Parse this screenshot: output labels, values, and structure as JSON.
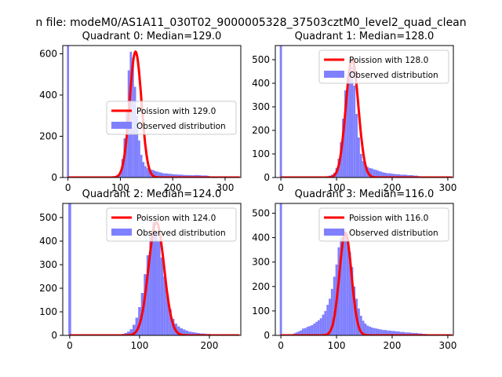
{
  "figure_title": "n file: modeM0/AS1A11_030T02_9000005328_37503cztM0_level2_quad_clean",
  "colors": {
    "poisson": "#ff0000",
    "observed": "#8080ff",
    "axis": "#000000"
  },
  "chart_data": [
    {
      "type": "bar",
      "title": "Quadrant 0: Median=129.0",
      "xlim": [
        -10,
        330
      ],
      "ylim": [
        0,
        640
      ],
      "xticks": [
        0,
        100,
        200,
        300
      ],
      "yticks": [
        0,
        200,
        400,
        600
      ],
      "legend": "center-right",
      "series": [
        {
          "name": "Poission with 129.0",
          "kind": "line",
          "median": 129.0
        },
        {
          "name": "Observed distribution",
          "kind": "hist"
        }
      ],
      "hist": {
        "x": [
          0,
          96,
          100,
          104,
          108,
          112,
          116,
          120,
          124,
          128,
          132,
          136,
          140,
          144,
          148,
          152,
          156,
          160,
          164,
          168,
          172,
          176,
          180,
          184,
          188,
          192,
          196,
          200,
          204,
          208,
          212,
          216,
          220,
          224,
          228,
          232,
          236,
          240,
          244,
          248,
          252,
          256,
          260,
          264,
          268,
          272,
          276,
          280
        ],
        "values": [
          640,
          5,
          30,
          90,
          190,
          330,
          520,
          610,
          580,
          440,
          300,
          180,
          110,
          75,
          55,
          45,
          40,
          38,
          35,
          30,
          28,
          25,
          22,
          20,
          20,
          18,
          18,
          16,
          15,
          15,
          14,
          14,
          13,
          12,
          12,
          12,
          11,
          11,
          12,
          12,
          11,
          10,
          10,
          10,
          8,
          6,
          4,
          3
        ]
      }
    },
    {
      "type": "bar",
      "title": "Quadrant 1: Median=128.0",
      "xlim": [
        -10,
        310
      ],
      "ylim": [
        0,
        560
      ],
      "xticks": [
        0,
        100,
        200,
        300
      ],
      "yticks": [
        0,
        100,
        200,
        300,
        400,
        500
      ],
      "legend": "top-right",
      "series": [
        {
          "name": "Poission with 128.0",
          "kind": "line",
          "median": 128.0
        },
        {
          "name": "Observed distribution",
          "kind": "hist"
        }
      ],
      "hist": {
        "x": [
          0,
          84,
          88,
          92,
          96,
          100,
          104,
          108,
          112,
          116,
          120,
          124,
          128,
          132,
          136,
          140,
          144,
          148,
          152,
          156,
          160,
          164,
          168,
          172,
          176,
          180,
          184,
          188,
          192,
          196,
          200,
          204,
          208,
          212,
          216,
          220,
          224,
          228,
          232,
          236,
          240,
          244,
          248,
          252,
          256,
          260
        ],
        "values": [
          560,
          4,
          8,
          12,
          20,
          40,
          80,
          150,
          250,
          370,
          430,
          500,
          470,
          390,
          270,
          170,
          100,
          70,
          55,
          45,
          40,
          38,
          34,
          32,
          28,
          25,
          22,
          20,
          18,
          18,
          16,
          15,
          14,
          14,
          12,
          12,
          12,
          10,
          10,
          10,
          8,
          8,
          6,
          4,
          4,
          2
        ]
      }
    },
    {
      "type": "bar",
      "title": "Quadrant 2: Median=124.0",
      "xlim": [
        -10,
        245
      ],
      "ylim": [
        0,
        560
      ],
      "xticks": [
        0,
        100,
        200
      ],
      "yticks": [
        0,
        100,
        200,
        300,
        400,
        500
      ],
      "legend": "top-right",
      "series": [
        {
          "name": "Poission with 124.0",
          "kind": "line",
          "median": 124.0
        },
        {
          "name": "Observed distribution",
          "kind": "hist"
        }
      ],
      "hist": {
        "x": [
          0,
          72,
          76,
          80,
          84,
          88,
          92,
          96,
          100,
          104,
          108,
          112,
          116,
          120,
          124,
          128,
          132,
          136,
          140,
          144,
          148,
          152,
          156,
          160,
          164,
          168,
          172,
          176,
          180,
          184,
          188,
          192,
          196,
          200,
          204,
          208,
          212,
          216,
          220
        ],
        "values": [
          560,
          4,
          6,
          10,
          16,
          26,
          45,
          75,
          120,
          180,
          260,
          340,
          420,
          480,
          440,
          400,
          330,
          250,
          170,
          110,
          70,
          50,
          38,
          30,
          25,
          20,
          16,
          14,
          12,
          10,
          8,
          8,
          6,
          6,
          4,
          4,
          3,
          2,
          2
        ]
      }
    },
    {
      "type": "bar",
      "title": "Quadrant 3: Median=116.0",
      "xlim": [
        -10,
        310
      ],
      "ylim": [
        0,
        540
      ],
      "xticks": [
        0,
        100,
        200,
        300
      ],
      "yticks": [
        0,
        100,
        200,
        300,
        400,
        500
      ],
      "legend": "top-right",
      "series": [
        {
          "name": "Poission with 116.0",
          "kind": "line",
          "median": 116.0
        },
        {
          "name": "Observed distribution",
          "kind": "hist"
        }
      ],
      "hist": {
        "x": [
          0,
          24,
          28,
          32,
          36,
          40,
          44,
          48,
          52,
          56,
          60,
          64,
          68,
          72,
          76,
          80,
          84,
          88,
          92,
          96,
          100,
          104,
          108,
          112,
          116,
          120,
          124,
          128,
          132,
          136,
          140,
          144,
          148,
          152,
          156,
          160,
          164,
          168,
          172,
          176,
          180,
          184,
          188,
          192,
          196,
          200,
          204,
          208,
          212,
          216,
          220,
          224,
          228,
          232,
          236,
          240,
          244,
          248,
          252,
          256,
          260,
          264,
          268
        ],
        "values": [
          540,
          8,
          12,
          16,
          20,
          28,
          30,
          35,
          38,
          42,
          48,
          55,
          62,
          70,
          85,
          100,
          125,
          150,
          190,
          240,
          290,
          360,
          400,
          420,
          410,
          390,
          340,
          280,
          200,
          150,
          110,
          80,
          60,
          48,
          40,
          36,
          32,
          30,
          28,
          26,
          24,
          22,
          22,
          20,
          20,
          18,
          18,
          16,
          16,
          14,
          14,
          12,
          12,
          12,
          10,
          10,
          10,
          8,
          8,
          6,
          6,
          4,
          3
        ]
      }
    }
  ]
}
